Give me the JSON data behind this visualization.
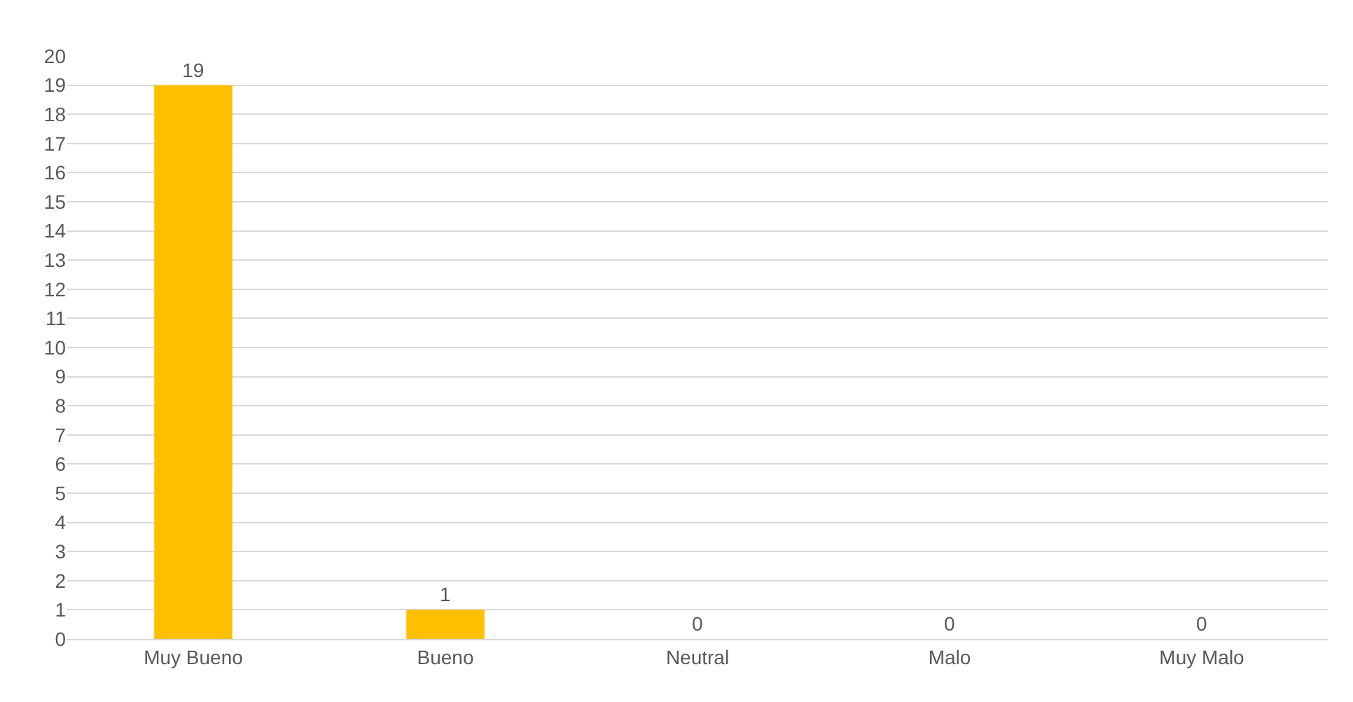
{
  "chart_data": {
    "type": "bar",
    "categories": [
      "Muy Bueno",
      "Bueno",
      "Neutral",
      "Malo",
      "Muy Malo"
    ],
    "values": [
      19,
      1,
      0,
      0,
      0
    ],
    "color": "#ffc000",
    "ylim": [
      0,
      20
    ],
    "yticks": [
      0,
      1,
      2,
      3,
      4,
      5,
      6,
      7,
      8,
      9,
      10,
      11,
      12,
      13,
      14,
      15,
      16,
      17,
      18,
      19,
      20
    ],
    "grid": "y",
    "data_labels": true
  }
}
